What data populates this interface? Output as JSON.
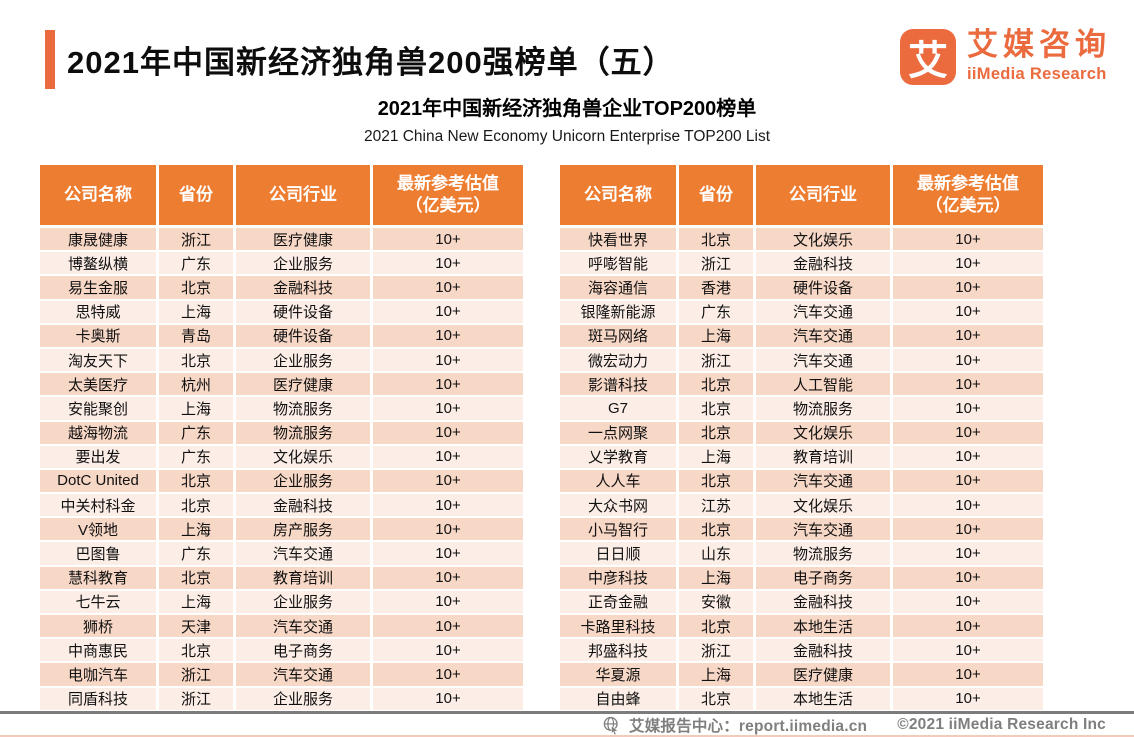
{
  "page": {
    "title": "2021年中国新经济独角兽200强榜单（五）",
    "subtitle_cn": "2021年中国新经济独角兽企业TOP200榜单",
    "subtitle_en": "2021 China New Economy Unicorn Enterprise TOP200 List"
  },
  "logo": {
    "badge_glyph": "艾",
    "name_cn": "艾媒咨询",
    "name_en": "iiMedia Research"
  },
  "header_labels": {
    "company": "公司名称",
    "province": "省份",
    "industry": "公司行业",
    "valuation_line1": "最新参考估值",
    "valuation_line2": "（亿美元）"
  },
  "left_table": {
    "rows": [
      {
        "company": "康晟健康",
        "province": "浙江",
        "industry": "医疗健康",
        "valuation": "10+"
      },
      {
        "company": "博鳌纵横",
        "province": "广东",
        "industry": "企业服务",
        "valuation": "10+"
      },
      {
        "company": "易生金服",
        "province": "北京",
        "industry": "金融科技",
        "valuation": "10+"
      },
      {
        "company": "思特威",
        "province": "上海",
        "industry": "硬件设备",
        "valuation": "10+"
      },
      {
        "company": "卡奥斯",
        "province": "青岛",
        "industry": "硬件设备",
        "valuation": "10+"
      },
      {
        "company": "淘友天下",
        "province": "北京",
        "industry": "企业服务",
        "valuation": "10+"
      },
      {
        "company": "太美医疗",
        "province": "杭州",
        "industry": "医疗健康",
        "valuation": "10+"
      },
      {
        "company": "安能聚创",
        "province": "上海",
        "industry": "物流服务",
        "valuation": "10+"
      },
      {
        "company": "越海物流",
        "province": "广东",
        "industry": "物流服务",
        "valuation": "10+"
      },
      {
        "company": "要出发",
        "province": "广东",
        "industry": "文化娱乐",
        "valuation": "10+"
      },
      {
        "company": "DotC United",
        "province": "北京",
        "industry": "企业服务",
        "valuation": "10+"
      },
      {
        "company": "中关村科金",
        "province": "北京",
        "industry": "金融科技",
        "valuation": "10+"
      },
      {
        "company": "V领地",
        "province": "上海",
        "industry": "房产服务",
        "valuation": "10+"
      },
      {
        "company": "巴图鲁",
        "province": "广东",
        "industry": "汽车交通",
        "valuation": "10+"
      },
      {
        "company": "慧科教育",
        "province": "北京",
        "industry": "教育培训",
        "valuation": "10+"
      },
      {
        "company": "七牛云",
        "province": "上海",
        "industry": "企业服务",
        "valuation": "10+"
      },
      {
        "company": "狮桥",
        "province": "天津",
        "industry": "汽车交通",
        "valuation": "10+"
      },
      {
        "company": "中商惠民",
        "province": "北京",
        "industry": "电子商务",
        "valuation": "10+"
      },
      {
        "company": "电咖汽车",
        "province": "浙江",
        "industry": "汽车交通",
        "valuation": "10+"
      },
      {
        "company": "同盾科技",
        "province": "浙江",
        "industry": "企业服务",
        "valuation": "10+"
      }
    ]
  },
  "right_table": {
    "rows": [
      {
        "company": "快看世界",
        "province": "北京",
        "industry": "文化娱乐",
        "valuation": "10+"
      },
      {
        "company": "呼嘭智能",
        "province": "浙江",
        "industry": "金融科技",
        "valuation": "10+"
      },
      {
        "company": "海容通信",
        "province": "香港",
        "industry": "硬件设备",
        "valuation": "10+"
      },
      {
        "company": "银隆新能源",
        "province": "广东",
        "industry": "汽车交通",
        "valuation": "10+"
      },
      {
        "company": "斑马网络",
        "province": "上海",
        "industry": "汽车交通",
        "valuation": "10+"
      },
      {
        "company": "微宏动力",
        "province": "浙江",
        "industry": "汽车交通",
        "valuation": "10+"
      },
      {
        "company": "影谱科技",
        "province": "北京",
        "industry": "人工智能",
        "valuation": "10+"
      },
      {
        "company": "G7",
        "province": "北京",
        "industry": "物流服务",
        "valuation": "10+"
      },
      {
        "company": "一点网聚",
        "province": "北京",
        "industry": "文化娱乐",
        "valuation": "10+"
      },
      {
        "company": "乂学教育",
        "province": "上海",
        "industry": "教育培训",
        "valuation": "10+"
      },
      {
        "company": "人人车",
        "province": "北京",
        "industry": "汽车交通",
        "valuation": "10+"
      },
      {
        "company": "大众书网",
        "province": "江苏",
        "industry": "文化娱乐",
        "valuation": "10+"
      },
      {
        "company": "小马智行",
        "province": "北京",
        "industry": "汽车交通",
        "valuation": "10+"
      },
      {
        "company": "日日顺",
        "province": "山东",
        "industry": "物流服务",
        "valuation": "10+"
      },
      {
        "company": "中彦科技",
        "province": "上海",
        "industry": "电子商务",
        "valuation": "10+"
      },
      {
        "company": "正奇金融",
        "province": "安徽",
        "industry": "金融科技",
        "valuation": "10+"
      },
      {
        "company": "卡路里科技",
        "province": "北京",
        "industry": "本地生活",
        "valuation": "10+"
      },
      {
        "company": "邦盛科技",
        "province": "浙江",
        "industry": "金融科技",
        "valuation": "10+"
      },
      {
        "company": "华夏源",
        "province": "上海",
        "industry": "医疗健康",
        "valuation": "10+"
      },
      {
        "company": "自由蜂",
        "province": "北京",
        "industry": "本地生活",
        "valuation": "10+"
      }
    ]
  },
  "footer": {
    "report_center": "艾媒报告中心：report.iimedia.cn",
    "copyright": "©2021  iiMedia Research Inc"
  },
  "colors": {
    "brand_orange": "#EB6A3E",
    "table_header_orange": "#ED7D31",
    "row_dark": "#F7D7C6",
    "row_light": "#FCEEE7",
    "footer_grey": "#7F7F7F"
  }
}
